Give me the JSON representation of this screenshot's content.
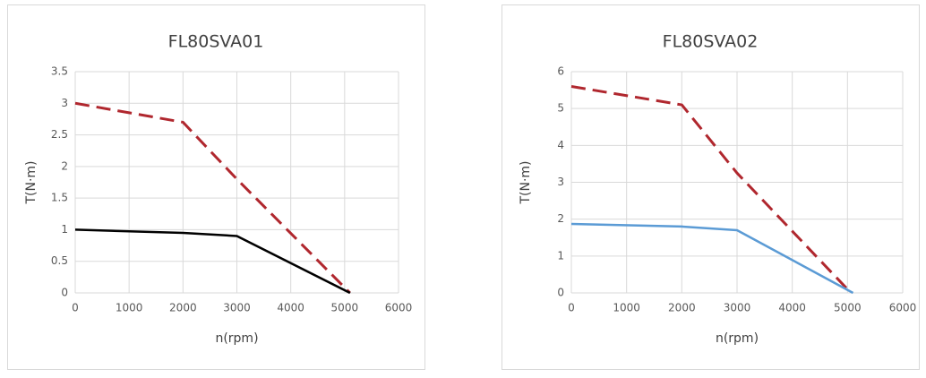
{
  "chart_data": [
    {
      "type": "line",
      "title": "FL80SVA01",
      "x_label": "n(rpm)",
      "y_label": "T(N·m)",
      "xlim": [
        0,
        6000
      ],
      "xticks": [
        0,
        1000,
        2000,
        3000,
        4000,
        5000,
        6000
      ],
      "ylim": [
        0,
        3.5
      ],
      "yticks": [
        0,
        0.5,
        1,
        1.5,
        2,
        2.5,
        3,
        3.5
      ],
      "grid": true,
      "series": [
        {
          "color": "#b0272e",
          "dashed": true,
          "x": [
            0,
            2000,
            3000,
            5100
          ],
          "values": [
            3,
            2.7,
            1.8,
            0
          ]
        },
        {
          "color": "#000000",
          "dashed": false,
          "x": [
            0,
            2000,
            3000,
            5100
          ],
          "values": [
            1,
            0.95,
            0.9,
            0
          ]
        }
      ]
    },
    {
      "type": "line",
      "title": "FL80SVA02",
      "x_label": "n(rpm)",
      "y_label": "T(N·m)",
      "xlim": [
        0,
        6000
      ],
      "xticks": [
        0,
        1000,
        2000,
        3000,
        4000,
        5000,
        6000
      ],
      "ylim": [
        0,
        6
      ],
      "yticks": [
        0,
        1,
        2,
        3,
        4,
        5,
        6
      ],
      "grid": true,
      "series": [
        {
          "color": "#b0272e",
          "dashed": true,
          "x": [
            0,
            2000,
            3000,
            5000
          ],
          "values": [
            5.6,
            5.1,
            3.25,
            0.1
          ]
        },
        {
          "color": "#5b9bd5",
          "dashed": false,
          "x": [
            0,
            2000,
            3000,
            5100
          ],
          "values": [
            1.87,
            1.8,
            1.7,
            0
          ]
        }
      ]
    }
  ]
}
